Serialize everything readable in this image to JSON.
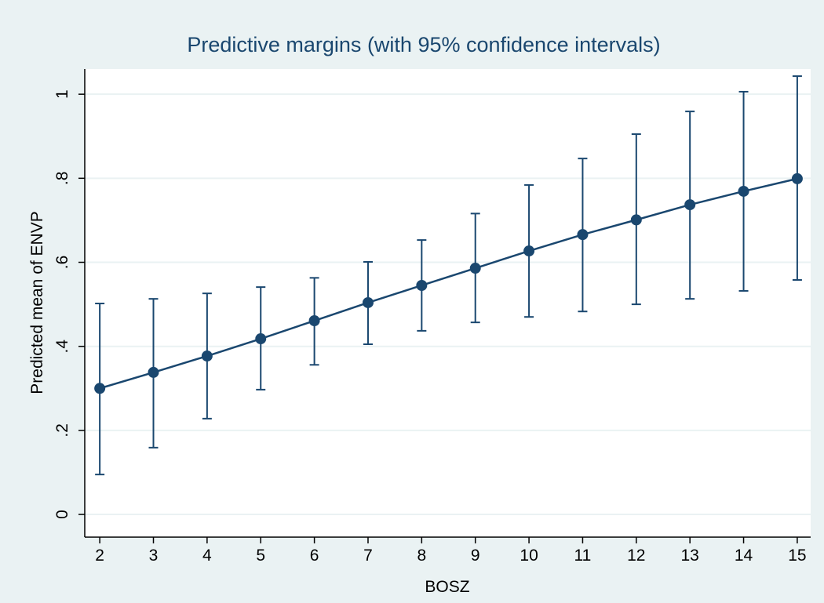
{
  "chart_data": {
    "type": "errorbar",
    "title": "Predictive margins (with 95% confidence intervals)",
    "x_label": "BOSZ",
    "y_label": "Predicted mean of ENVP",
    "color": "#1a476f",
    "grid": true,
    "x": [
      2,
      3,
      4,
      5,
      6,
      7,
      8,
      9,
      10,
      11,
      12,
      13,
      14,
      15
    ],
    "values": [
      0.3,
      0.338,
      0.377,
      0.418,
      0.461,
      0.504,
      0.545,
      0.586,
      0.627,
      0.666,
      0.701,
      0.737,
      0.769,
      0.799
    ],
    "ci_lower": [
      0.095,
      0.159,
      0.228,
      0.297,
      0.356,
      0.405,
      0.437,
      0.457,
      0.47,
      0.483,
      0.5,
      0.513,
      0.532,
      0.558
    ],
    "ci_upper": [
      0.502,
      0.513,
      0.526,
      0.541,
      0.563,
      0.601,
      0.653,
      0.716,
      0.784,
      0.847,
      0.905,
      0.959,
      1.006,
      1.043
    ],
    "xlim": [
      1.72,
      15.25
    ],
    "xticks": [
      2,
      3,
      4,
      5,
      6,
      7,
      8,
      9,
      10,
      11,
      12,
      13,
      14,
      15
    ],
    "ylim": [
      -0.054,
      1.06
    ],
    "yticks": [
      0,
      {
        "value": 0.2,
        "label": ".2"
      },
      {
        "value": 0.4,
        "label": ".4"
      },
      {
        "value": 0.6,
        "label": ".6"
      },
      {
        "value": 0.8,
        "label": ".8"
      },
      1
    ]
  }
}
